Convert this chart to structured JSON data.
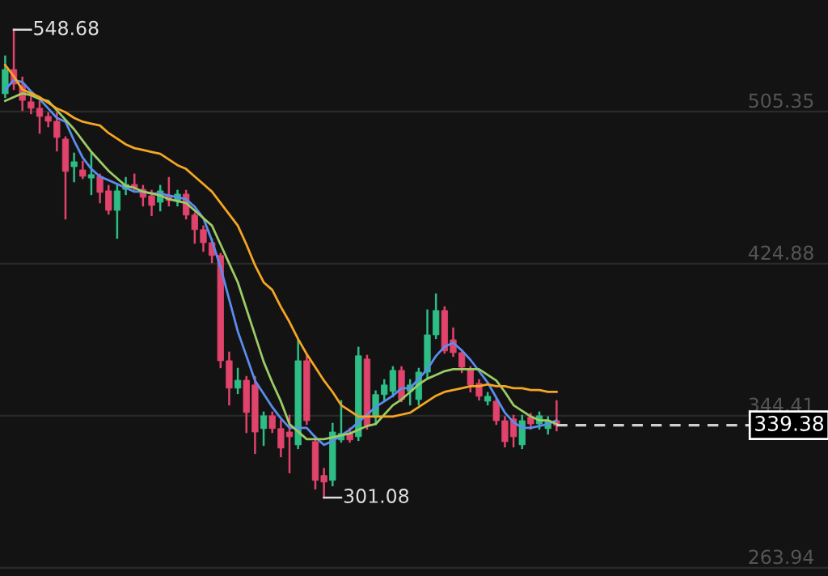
{
  "chart_data": {
    "type": "candlestick",
    "categories": [
      null,
      null,
      null,
      null,
      null,
      null,
      null,
      null,
      null,
      null,
      null,
      null,
      null,
      null,
      null,
      null,
      null,
      null,
      null,
      null,
      null,
      null,
      null,
      null,
      null,
      null,
      null,
      null,
      null,
      null,
      null,
      null,
      null,
      null,
      null,
      null,
      null,
      null,
      null,
      null,
      null,
      null,
      null,
      null,
      null,
      null,
      null,
      null,
      null,
      null,
      null,
      null,
      null,
      null,
      null,
      null,
      null,
      null,
      null,
      null,
      null,
      null,
      null,
      null,
      null,
      null,
      null,
      null,
      null,
      null,
      null,
      null,
      null,
      null,
      null,
      null,
      null,
      null,
      null,
      null,
      null,
      null,
      null,
      null,
      null,
      null,
      null,
      null,
      null,
      null,
      null,
      null,
      null,
      null,
      null,
      null
    ],
    "ohlc": [
      [
        514.8,
        534.5,
        513.1,
        527.6
      ],
      [
        527.6,
        548.68,
        517.3,
        519.9
      ],
      [
        519.0,
        523.3,
        506.2,
        511.3
      ],
      [
        510.5,
        513.1,
        504.5,
        507.1
      ],
      [
        507.1,
        510.5,
        494.2,
        502.8
      ],
      [
        502.8,
        504.5,
        497.6,
        500.2
      ],
      [
        500.2,
        504.5,
        484.8,
        491.7
      ],
      [
        490.8,
        491.7,
        448.8,
        473.7
      ],
      [
        476.2,
        483.1,
        468.5,
        478.8
      ],
      [
        474.5,
        478.8,
        470.2,
        471.1
      ],
      [
        470.2,
        483.1,
        461.7,
        472.0
      ],
      [
        471.1,
        472.0,
        457.4,
        462.6
      ],
      [
        463.4,
        466.0,
        451.4,
        453.1
      ],
      [
        453.1,
        466.0,
        438.6,
        463.4
      ],
      [
        464.2,
        470.2,
        461.7,
        466.8
      ],
      [
        466.8,
        472.0,
        464.2,
        465.1
      ],
      [
        464.2,
        466.0,
        455.7,
        460.0
      ],
      [
        460.8,
        463.4,
        450.6,
        455.7
      ],
      [
        457.4,
        466.0,
        453.1,
        463.4
      ],
      [
        460.8,
        470.2,
        455.7,
        458.3
      ],
      [
        458.3,
        463.4,
        455.7,
        461.7
      ],
      [
        461.7,
        463.4,
        448.8,
        450.6
      ],
      [
        450.6,
        451.4,
        436.0,
        442.9
      ],
      [
        442.9,
        444.6,
        431.7,
        436.0
      ],
      [
        436.0,
        437.7,
        425.7,
        429.2
      ],
      [
        429.2,
        430.0,
        370.1,
        373.5
      ],
      [
        373.5,
        377.8,
        350.4,
        359.0
      ],
      [
        359.0,
        369.2,
        356.4,
        363.2
      ],
      [
        363.2,
        364.9,
        335.8,
        346.1
      ],
      [
        360.7,
        364.9,
        324.7,
        335.8
      ],
      [
        337.6,
        346.1,
        329.0,
        344.4
      ],
      [
        344.4,
        346.1,
        335.8,
        337.6
      ],
      [
        337.6,
        341.8,
        323.0,
        327.3
      ],
      [
        335.8,
        344.4,
        314.5,
        333.3
      ],
      [
        329.0,
        384.6,
        327.3,
        373.5
      ],
      [
        373.5,
        376.1,
        340.1,
        341.8
      ],
      [
        330.7,
        333.3,
        305.9,
        310.2
      ],
      [
        312.8,
        316.2,
        301.08,
        309.3
      ],
      [
        310.2,
        340.1,
        307.6,
        335.8
      ],
      [
        331.6,
        352.1,
        330.7,
        335.0
      ],
      [
        335.0,
        337.6,
        330.7,
        331.6
      ],
      [
        333.3,
        380.4,
        331.6,
        376.1
      ],
      [
        374.4,
        376.1,
        337.6,
        339.4
      ],
      [
        343.6,
        357.3,
        340.1,
        355.6
      ],
      [
        355.6,
        363.2,
        353.0,
        360.7
      ],
      [
        357.3,
        370.1,
        354.7,
        368.4
      ],
      [
        368.4,
        370.1,
        352.1,
        353.0
      ],
      [
        357.3,
        363.2,
        350.4,
        360.7
      ],
      [
        353.0,
        369.2,
        350.4,
        367.5
      ],
      [
        367.5,
        400.1,
        364.9,
        387.2
      ],
      [
        387.2,
        408.6,
        385.5,
        400.1
      ],
      [
        400.1,
        401.8,
        377.8,
        378.7
      ],
      [
        384.6,
        390.6,
        376.1,
        377.8
      ],
      [
        377.8,
        378.7,
        367.5,
        370.1
      ],
      [
        369.2,
        370.1,
        357.3,
        360.7
      ],
      [
        361.5,
        363.2,
        353.0,
        354.7
      ],
      [
        352.1,
        356.4,
        350.4,
        354.7
      ],
      [
        352.1,
        353.0,
        340.1,
        341.8
      ],
      [
        341.8,
        343.6,
        328.2,
        330.7
      ],
      [
        342.7,
        344.4,
        328.2,
        333.3
      ],
      [
        329.0,
        344.4,
        327.3,
        341.8
      ],
      [
        343.6,
        345.3,
        337.6,
        340.1
      ],
      [
        340.1,
        346.1,
        337.6,
        344.4
      ],
      [
        337.6,
        343.6,
        335.0,
        341.8
      ],
      [
        341.8,
        352.1,
        336.7,
        339.38
      ],
      null,
      null,
      null,
      null,
      null,
      null,
      null,
      null,
      null,
      null,
      null,
      null,
      null,
      null,
      null,
      null,
      null,
      null,
      null,
      null,
      null,
      null,
      null,
      null,
      null,
      null,
      null,
      null,
      null,
      null,
      null
    ],
    "colors": [
      "#2ebd85",
      "#e0436b",
      "#e0436b",
      "#e0436b",
      "#e0436b",
      "#e0436b",
      "#e0436b",
      "#e0436b",
      "#2ebd85",
      "#e0436b",
      "#2ebd85",
      "#e0436b",
      "#e0436b",
      "#2ebd85",
      "#2ebd85",
      "#e0436b",
      "#e0436b",
      "#e0436b",
      "#2ebd85",
      "#e0436b",
      "#2ebd85",
      "#e0436b",
      "#e0436b",
      "#e0436b",
      "#e0436b",
      "#e0436b",
      "#e0436b",
      "#2ebd85",
      "#e0436b",
      "#e0436b",
      "#2ebd85",
      "#e0436b",
      "#e0436b",
      "#e0436b",
      "#2ebd85",
      "#e0436b",
      "#e0436b",
      "#e0436b",
      "#2ebd85",
      "#2ebd85",
      "#e0436b",
      "#2ebd85",
      "#e0436b",
      "#2ebd85",
      "#2ebd85",
      "#2ebd85",
      "#e0436b",
      "#2ebd85",
      "#2ebd85",
      "#2ebd85",
      "#2ebd85",
      "#e0436b",
      "#e0436b",
      "#e0436b",
      "#e0436b",
      "#e0436b",
      "#2ebd85",
      "#e0436b",
      "#e0436b",
      "#e0436b",
      "#2ebd85",
      "#e0436b",
      "#2ebd85",
      "#2ebd85",
      "#e0436b",
      null,
      null,
      null,
      null,
      null,
      null,
      null,
      null,
      null,
      null,
      null,
      null,
      null,
      null,
      null,
      null,
      null,
      null,
      null,
      null,
      null,
      null,
      null,
      null,
      null,
      null,
      null,
      null,
      null,
      null,
      null
    ],
    "series": [
      {
        "type": "line",
        "color": "#5b8def",
        "values": [
          517,
          522,
          521,
          516,
          512,
          507,
          502,
          500,
          490,
          481,
          475,
          471,
          469,
          467,
          465,
          463,
          463,
          462,
          462,
          461,
          460,
          459,
          455,
          449,
          437,
          423,
          406,
          389,
          376,
          363,
          356,
          349,
          343,
          338,
          338,
          338,
          333,
          329,
          331,
          334,
          337,
          341,
          345,
          349,
          352,
          355,
          359,
          359,
          364,
          369,
          376,
          381,
          383,
          379,
          374,
          368,
          362,
          354,
          346,
          341,
          338,
          338,
          339,
          340,
          342,
          null,
          null,
          null,
          null,
          null,
          null,
          null,
          null,
          null,
          null,
          null,
          null,
          null,
          null,
          null,
          null,
          null,
          null,
          null,
          null,
          null,
          null,
          null,
          null,
          null,
          null,
          null,
          null,
          null,
          null,
          null
        ]
      },
      {
        "type": "line",
        "color": "#9ccc65",
        "values": [
          511,
          513,
          515,
          514,
          512,
          511,
          506,
          501,
          496,
          490,
          484,
          479,
          474,
          470,
          466,
          465,
          463,
          462,
          461,
          459,
          458,
          457,
          453,
          449,
          445,
          435,
          425,
          415,
          401,
          387,
          373,
          362,
          352,
          340,
          336,
          332,
          332,
          332,
          333,
          334,
          335,
          337,
          339,
          340,
          345,
          350,
          353,
          357,
          361,
          364,
          366,
          368,
          369,
          369,
          369,
          369,
          366,
          363,
          357,
          350,
          347,
          344,
          342,
          342,
          340,
          null,
          null,
          null,
          null,
          null,
          null,
          null,
          null,
          null,
          null,
          null,
          null,
          null,
          null,
          null,
          null,
          null,
          null,
          null,
          null,
          null,
          null,
          null,
          null,
          null,
          null,
          null,
          null,
          null,
          null,
          null
        ]
      },
      {
        "type": "line",
        "color": "#f5a623",
        "values": [
          530,
          524,
          517,
          515,
          513,
          510,
          507,
          505,
          502,
          500,
          499,
          498,
          494,
          491,
          488,
          486,
          485,
          484,
          483,
          480,
          477,
          475,
          471,
          467,
          463,
          457,
          451,
          445,
          435,
          424,
          415,
          411,
          402,
          394,
          385,
          377,
          370,
          363,
          357,
          350,
          347,
          344,
          344,
          344,
          344,
          344,
          345,
          346,
          349,
          352,
          355,
          357,
          358,
          359,
          360,
          360,
          361,
          360,
          360,
          359,
          359,
          358,
          358,
          357,
          357,
          null,
          null,
          null,
          null,
          null,
          null,
          null,
          null,
          null,
          null,
          null,
          null,
          null,
          null,
          null,
          null,
          null,
          null,
          null,
          null,
          null,
          null,
          null,
          null,
          null,
          null,
          null,
          null,
          null,
          null,
          null
        ]
      }
    ],
    "ylim": [
      259.6,
      564.4
    ],
    "yticks": [
      263.94,
      344.41,
      424.88,
      505.35
    ],
    "grid": "y",
    "tick_labels": "y",
    "ref_lines": [
      {
        "axis": "y",
        "value": 339.38,
        "label": "339.38",
        "color": "#d0d0d0",
        "line_style": "dashed"
      }
    ],
    "annotations": [
      "548.68",
      "301.08"
    ]
  }
}
